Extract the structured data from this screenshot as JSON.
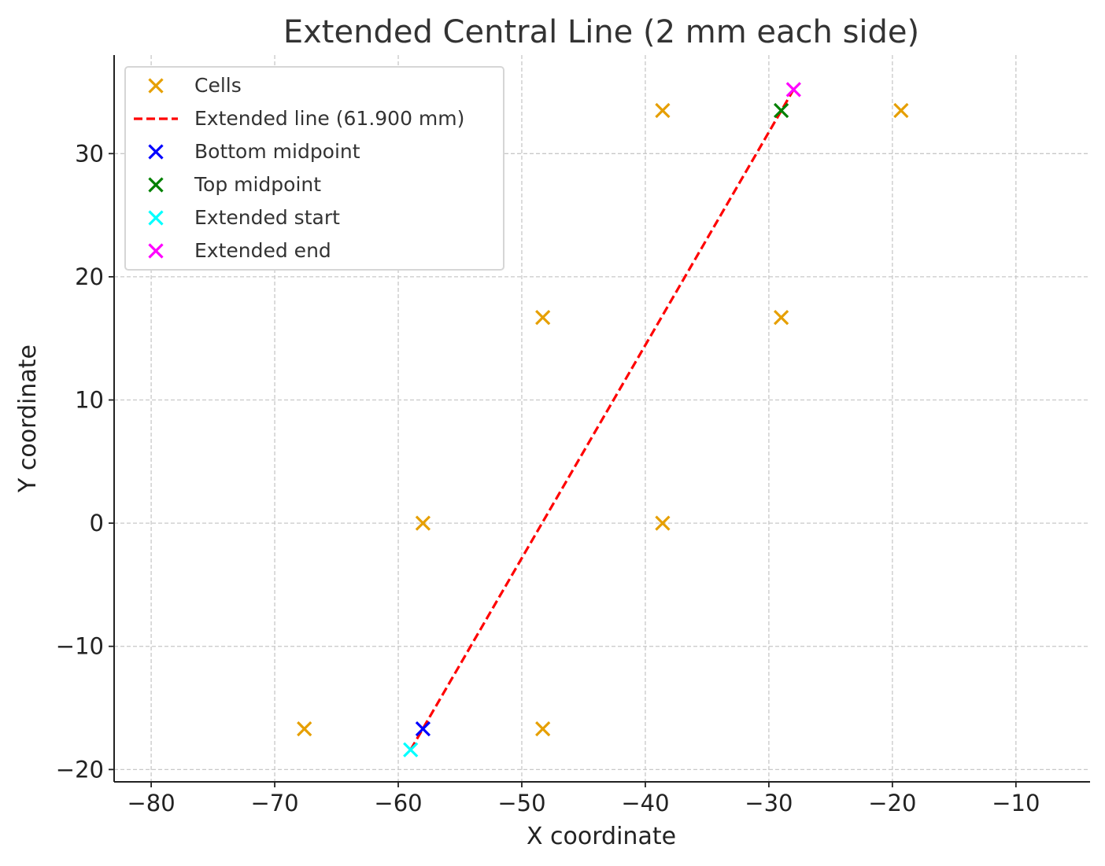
{
  "chart_data": {
    "type": "scatter",
    "title": "Extended Central Line (2 mm each side)",
    "xlabel": "X coordinate",
    "ylabel": "Y coordinate",
    "xlim": [
      -83,
      -4
    ],
    "ylim": [
      -21,
      38
    ],
    "xticks": [
      -80,
      -70,
      -60,
      -50,
      -40,
      -30,
      -20,
      -10
    ],
    "yticks": [
      -20,
      -10,
      0,
      10,
      20,
      30
    ],
    "xtick_labels": [
      "−80",
      "−70",
      "−60",
      "−50",
      "−40",
      "−30",
      "−20",
      "−10"
    ],
    "ytick_labels": [
      "−20",
      "−10",
      "0",
      "10",
      "20",
      "30"
    ],
    "grid": true,
    "legend_position": "top-left",
    "series": [
      {
        "name": "Cells",
        "kind": "marker",
        "color": "#E69F00",
        "points": [
          {
            "x": -67.6,
            "y": -16.7
          },
          {
            "x": -48.3,
            "y": -16.7
          },
          {
            "x": -58.0,
            "y": 0.0
          },
          {
            "x": -38.6,
            "y": 0.0
          },
          {
            "x": -48.3,
            "y": 16.7
          },
          {
            "x": -29.0,
            "y": 16.7
          },
          {
            "x": -38.6,
            "y": 33.5
          },
          {
            "x": -19.3,
            "y": 33.5
          }
        ]
      },
      {
        "name": "Extended line (61.900 mm)",
        "kind": "line",
        "color": "#FF0000",
        "points": [
          {
            "x": -59.0,
            "y": -18.4
          },
          {
            "x": -28.0,
            "y": 35.2
          }
        ]
      },
      {
        "name": "Bottom midpoint",
        "kind": "marker",
        "color": "#0000FF",
        "points": [
          {
            "x": -58.0,
            "y": -16.7
          }
        ]
      },
      {
        "name": "Top midpoint",
        "kind": "marker",
        "color": "#008000",
        "points": [
          {
            "x": -29.0,
            "y": 33.5
          }
        ]
      },
      {
        "name": "Extended start",
        "kind": "marker",
        "color": "#00FFFF",
        "points": [
          {
            "x": -59.0,
            "y": -18.4
          }
        ]
      },
      {
        "name": "Extended end",
        "kind": "marker",
        "color": "#FF00FF",
        "points": [
          {
            "x": -28.0,
            "y": 35.2
          }
        ]
      }
    ]
  }
}
